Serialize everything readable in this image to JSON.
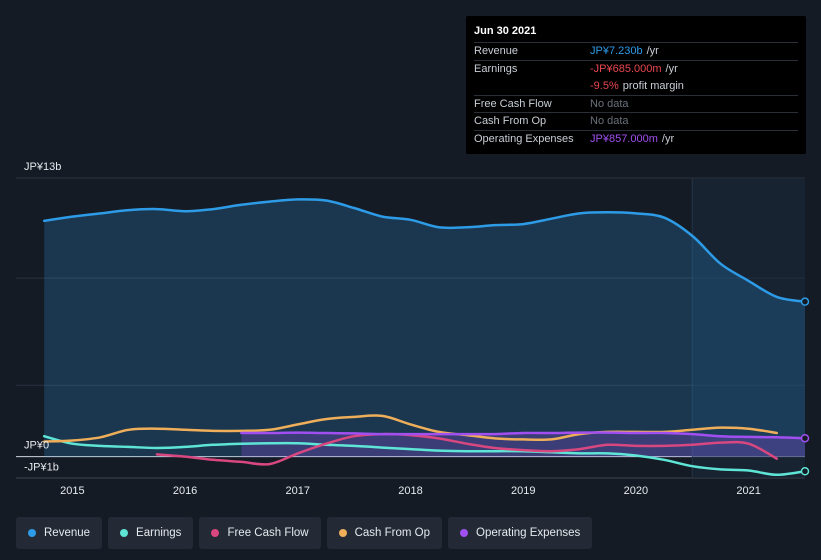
{
  "tooltip": {
    "date": "Jun 30 2021",
    "rows": {
      "revenue": {
        "label": "Revenue",
        "value": "JP¥7.230b",
        "unit": "/yr"
      },
      "earnings": {
        "label": "Earnings",
        "value": "-JP¥685.000m",
        "unit": "/yr"
      },
      "margin": {
        "value": "-9.5%",
        "unit": "profit margin"
      },
      "fcf": {
        "label": "Free Cash Flow",
        "value": "No data"
      },
      "cfo": {
        "label": "Cash From Op",
        "value": "No data"
      },
      "opex": {
        "label": "Operating Expenses",
        "value": "JP¥857.000m",
        "unit": "/yr"
      }
    }
  },
  "legend": [
    {
      "name": "Revenue",
      "color": "#2d9be6"
    },
    {
      "name": "Earnings",
      "color": "#5ee5d6"
    },
    {
      "name": "Free Cash Flow",
      "color": "#d8477f"
    },
    {
      "name": "Cash From Op",
      "color": "#eeae5a"
    },
    {
      "name": "Operating Expenses",
      "color": "#a14ff0"
    }
  ],
  "chart_data": {
    "type": "area",
    "y_ticks": [
      {
        "label": "JP¥13b",
        "value": 13
      },
      {
        "label": "JP¥0",
        "value": 0
      },
      {
        "label": "-JP¥1b",
        "value": -1
      }
    ],
    "ylim": [
      -1,
      13
    ],
    "xlim": [
      2014.5,
      2021.5
    ],
    "x_ticks": [
      {
        "label": "2015",
        "value": 2015
      },
      {
        "label": "2016",
        "value": 2016
      },
      {
        "label": "2017",
        "value": 2017
      },
      {
        "label": "2018",
        "value": 2018
      },
      {
        "label": "2019",
        "value": 2019
      },
      {
        "label": "2020",
        "value": 2020
      },
      {
        "label": "2021",
        "value": 2021
      }
    ],
    "highlight_from": 2020.5,
    "series": [
      {
        "name": "Revenue",
        "color": "#2d9be6",
        "fill": true,
        "x": [
          2014.75,
          2015.0,
          2015.25,
          2015.5,
          2015.75,
          2016.0,
          2016.25,
          2016.5,
          2016.75,
          2017.0,
          2017.25,
          2017.5,
          2017.75,
          2018.0,
          2018.25,
          2018.5,
          2018.75,
          2019.0,
          2019.25,
          2019.5,
          2019.75,
          2020.0,
          2020.25,
          2020.5,
          2020.75,
          2021.0,
          2021.25,
          2021.5
        ],
        "y": [
          11.0,
          11.2,
          11.35,
          11.5,
          11.55,
          11.45,
          11.55,
          11.75,
          11.9,
          12.0,
          11.95,
          11.6,
          11.2,
          11.05,
          10.7,
          10.7,
          10.8,
          10.85,
          11.1,
          11.35,
          11.4,
          11.35,
          11.15,
          10.3,
          9.0,
          8.2,
          7.45,
          7.23
        ]
      },
      {
        "name": "Earnings",
        "color": "#5ee5d6",
        "fill": false,
        "x": [
          2014.75,
          2015.0,
          2015.25,
          2015.5,
          2015.75,
          2016.0,
          2016.25,
          2016.5,
          2016.75,
          2017.0,
          2017.25,
          2017.5,
          2017.75,
          2018.0,
          2018.25,
          2018.5,
          2018.75,
          2019.0,
          2019.25,
          2019.5,
          2019.75,
          2020.0,
          2020.25,
          2020.5,
          2020.75,
          2021.0,
          2021.25,
          2021.5
        ],
        "y": [
          0.95,
          0.6,
          0.5,
          0.45,
          0.4,
          0.45,
          0.55,
          0.6,
          0.62,
          0.62,
          0.55,
          0.5,
          0.42,
          0.35,
          0.28,
          0.25,
          0.25,
          0.25,
          0.2,
          0.15,
          0.15,
          0.05,
          -0.15,
          -0.45,
          -0.6,
          -0.65,
          -0.85,
          -0.685
        ]
      },
      {
        "name": "Free Cash Flow",
        "color": "#d8477f",
        "fill": false,
        "x": [
          2015.75,
          2016.0,
          2016.25,
          2016.5,
          2016.75,
          2017.0,
          2017.25,
          2017.5,
          2017.75,
          2018.0,
          2018.25,
          2018.5,
          2018.75,
          2019.0,
          2019.25,
          2019.5,
          2019.75,
          2020.0,
          2020.25,
          2020.5,
          2020.75,
          2021.0,
          2021.25
        ],
        "y": [
          0.1,
          0.0,
          -0.15,
          -0.25,
          -0.35,
          0.15,
          0.6,
          0.95,
          1.05,
          1.0,
          0.85,
          0.6,
          0.4,
          0.3,
          0.25,
          0.35,
          0.55,
          0.5,
          0.5,
          0.55,
          0.65,
          0.6,
          -0.1
        ]
      },
      {
        "name": "Cash From Op",
        "color": "#eeae5a",
        "fill": false,
        "x": [
          2014.75,
          2015.0,
          2015.25,
          2015.5,
          2015.75,
          2016.0,
          2016.25,
          2016.5,
          2016.75,
          2017.0,
          2017.25,
          2017.5,
          2017.75,
          2018.0,
          2018.25,
          2018.5,
          2018.75,
          2019.0,
          2019.25,
          2019.5,
          2019.75,
          2020.0,
          2020.25,
          2020.5,
          2020.75,
          2021.0,
          2021.25
        ],
        "y": [
          0.7,
          0.75,
          0.9,
          1.25,
          1.3,
          1.25,
          1.2,
          1.2,
          1.25,
          1.5,
          1.75,
          1.85,
          1.9,
          1.5,
          1.15,
          1.0,
          0.85,
          0.8,
          0.8,
          1.05,
          1.15,
          1.15,
          1.15,
          1.25,
          1.35,
          1.3,
          1.1
        ]
      },
      {
        "name": "Operating Expenses",
        "color": "#a14ff0",
        "fill": true,
        "x": [
          2016.5,
          2016.75,
          2017.0,
          2017.25,
          2017.5,
          2017.75,
          2018.0,
          2018.25,
          2018.5,
          2018.75,
          2019.0,
          2019.25,
          2019.5,
          2019.75,
          2020.0,
          2020.25,
          2020.5,
          2020.75,
          2021.0,
          2021.25,
          2021.5
        ],
        "y": [
          1.1,
          1.1,
          1.12,
          1.1,
          1.08,
          1.05,
          1.05,
          1.05,
          1.05,
          1.05,
          1.1,
          1.1,
          1.12,
          1.12,
          1.1,
          1.1,
          1.05,
          0.95,
          0.92,
          0.9,
          0.857
        ]
      }
    ]
  }
}
